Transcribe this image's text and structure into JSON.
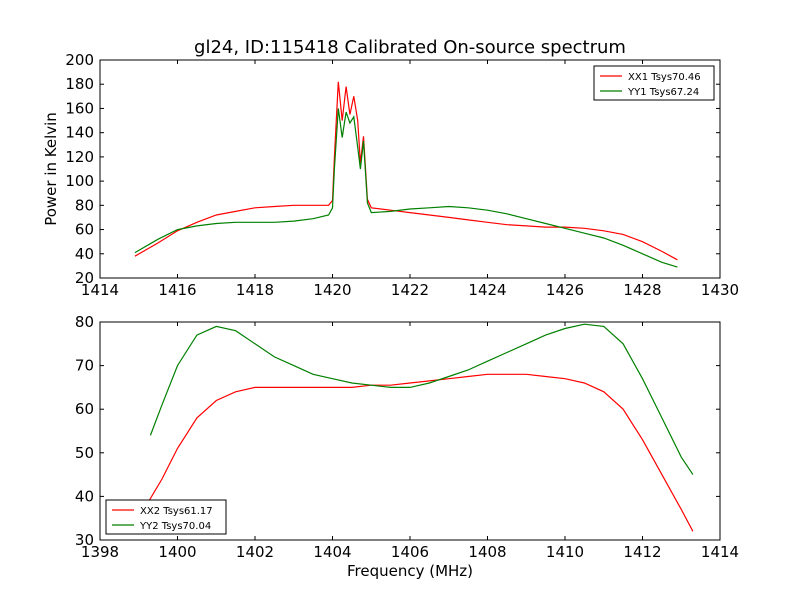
{
  "title": "gl24, ID:115418 Calibrated On-source spectrum",
  "chart_data": [
    {
      "type": "line",
      "ylabel": "Power in Kelvin",
      "xlabel": "",
      "xlim": [
        1414,
        1430
      ],
      "ylim": [
        20,
        200
      ],
      "xticks": [
        1414,
        1416,
        1418,
        1420,
        1422,
        1424,
        1426,
        1428,
        1430
      ],
      "yticks": [
        20,
        40,
        60,
        80,
        100,
        120,
        140,
        160,
        180,
        200
      ],
      "legend_position": "top-right",
      "series": [
        {
          "name": "XX1 Tsys70.46",
          "color": "#ff0000",
          "x": [
            1414.9,
            1415.5,
            1416.0,
            1416.5,
            1417.0,
            1417.5,
            1418.0,
            1418.5,
            1419.0,
            1419.5,
            1419.9,
            1420.0,
            1420.05,
            1420.15,
            1420.25,
            1420.35,
            1420.45,
            1420.55,
            1420.65,
            1420.72,
            1420.8,
            1420.9,
            1421.0,
            1421.5,
            1422.0,
            1422.5,
            1423.0,
            1423.5,
            1424.0,
            1424.5,
            1425.0,
            1425.5,
            1426.0,
            1426.5,
            1427.0,
            1427.5,
            1428.0,
            1428.5,
            1428.9
          ],
          "values": [
            38,
            49,
            59,
            66,
            72,
            75,
            78,
            79,
            80,
            80,
            80,
            84,
            120,
            182,
            150,
            178,
            155,
            170,
            150,
            115,
            137,
            85,
            78,
            76,
            74,
            72,
            70,
            68,
            66,
            64,
            63,
            62,
            62,
            61,
            59,
            56,
            50,
            42,
            35
          ]
        },
        {
          "name": "YY1 Tsys67.24",
          "color": "#008000",
          "x": [
            1414.9,
            1415.5,
            1416.0,
            1416.5,
            1417.0,
            1417.5,
            1418.0,
            1418.5,
            1419.0,
            1419.5,
            1419.9,
            1420.0,
            1420.05,
            1420.15,
            1420.25,
            1420.35,
            1420.45,
            1420.55,
            1420.65,
            1420.72,
            1420.8,
            1420.9,
            1421.0,
            1421.5,
            1422.0,
            1422.5,
            1423.0,
            1423.5,
            1424.0,
            1424.5,
            1425.0,
            1425.5,
            1426.0,
            1426.5,
            1427.0,
            1427.5,
            1428.0,
            1428.5,
            1428.9
          ],
          "values": [
            41,
            52,
            60,
            63,
            65,
            66,
            66,
            66,
            67,
            69,
            72,
            78,
            110,
            160,
            136,
            157,
            148,
            153,
            128,
            110,
            133,
            82,
            74,
            75,
            77,
            78,
            79,
            78,
            76,
            73,
            69,
            65,
            61,
            57,
            53,
            47,
            40,
            33,
            29
          ]
        }
      ]
    },
    {
      "type": "line",
      "ylabel": "",
      "xlabel": "Frequency (MHz)",
      "xlim": [
        1398,
        1414
      ],
      "ylim": [
        30,
        80
      ],
      "xticks": [
        1398,
        1400,
        1402,
        1404,
        1406,
        1408,
        1410,
        1412,
        1414
      ],
      "yticks": [
        30,
        40,
        50,
        60,
        70,
        80
      ],
      "legend_position": "bottom-left",
      "series": [
        {
          "name": "XX2 Tsys61.17",
          "color": "#ff0000",
          "x": [
            1399.2,
            1399.6,
            1400.0,
            1400.5,
            1401.0,
            1401.5,
            1402.0,
            1402.5,
            1403.0,
            1403.5,
            1404.0,
            1404.5,
            1405.0,
            1405.5,
            1406.0,
            1406.5,
            1407.0,
            1407.5,
            1408.0,
            1408.5,
            1409.0,
            1409.5,
            1410.0,
            1410.5,
            1411.0,
            1411.5,
            1412.0,
            1412.5,
            1413.0,
            1413.3
          ],
          "values": [
            38,
            44,
            51,
            58,
            62,
            64,
            65,
            65,
            65,
            65,
            65,
            65,
            65.5,
            65.5,
            66,
            66.5,
            67,
            67.5,
            68,
            68,
            68,
            67.5,
            67,
            66,
            64,
            60,
            53,
            45,
            37,
            32
          ]
        },
        {
          "name": "YY2 Tsys70.04",
          "color": "#008000",
          "x": [
            1399.3,
            1399.6,
            1400.0,
            1400.5,
            1401.0,
            1401.5,
            1402.0,
            1402.5,
            1403.0,
            1403.5,
            1404.0,
            1404.5,
            1405.0,
            1405.5,
            1406.0,
            1406.5,
            1407.0,
            1407.5,
            1408.0,
            1408.5,
            1409.0,
            1409.5,
            1410.0,
            1410.5,
            1411.0,
            1411.5,
            1412.0,
            1412.5,
            1413.0,
            1413.3
          ],
          "values": [
            54,
            61,
            70,
            77,
            79,
            78,
            75,
            72,
            70,
            68,
            67,
            66,
            65.5,
            65,
            65,
            66,
            67.5,
            69,
            71,
            73,
            75,
            77,
            78.5,
            79.5,
            79,
            75,
            67,
            58,
            49,
            45
          ]
        }
      ]
    }
  ]
}
